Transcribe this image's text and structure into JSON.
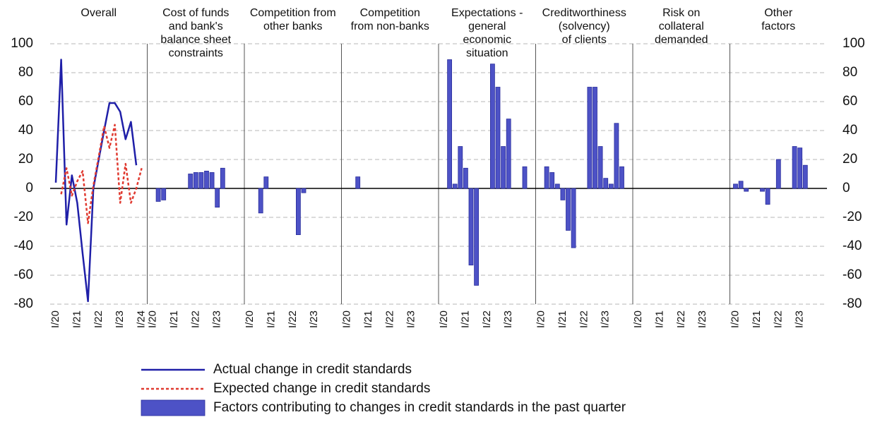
{
  "chart_data": {
    "type": "bar",
    "ylim": [
      -80,
      100
    ],
    "yticks": [
      -80,
      -60,
      -40,
      -20,
      0,
      20,
      40,
      60,
      80,
      100
    ],
    "grid": true,
    "bar_name": "Factors contributing to changes in credit standards in the past quarter",
    "color": "#4d52c6",
    "categories": [
      "I/20",
      null,
      null,
      null,
      "I/21",
      null,
      null,
      null,
      "I/22",
      null,
      null,
      null,
      "I/23",
      null,
      null,
      null
    ],
    "panels": [
      {
        "type": "line",
        "title": [
          "Overall"
        ],
        "categories": [
          "I/20",
          null,
          null,
          null,
          "I/21",
          null,
          null,
          null,
          "I/22",
          null,
          null,
          null,
          "I/23",
          null,
          null,
          null,
          "I/24"
        ],
        "series": [
          {
            "name": "Actual change in credit standards",
            "color": "#1f1fa8",
            "dash": false,
            "values": [
              4,
              89,
              -25,
              9,
              -10,
              -45,
              -78,
              0,
              20,
              40,
              59,
              59,
              53,
              34,
              46,
              16,
              null
            ]
          },
          {
            "name": "Expected change in credit standards",
            "color": "#e03a30",
            "dash": true,
            "values": [
              null,
              -4,
              14,
              -5,
              5,
              12,
              -24,
              2,
              22,
              43,
              28,
              44,
              -10,
              17,
              -10,
              0,
              14
            ]
          }
        ]
      },
      {
        "type": "bar",
        "title": [
          "Cost of funds",
          "and bank's",
          "balance sheet",
          "constraints"
        ],
        "values": [
          0,
          -9,
          -8,
          0,
          0,
          0,
          0,
          10,
          11,
          11,
          12,
          11,
          -13,
          14,
          0,
          0
        ]
      },
      {
        "type": "bar",
        "title": [
          "Competition from",
          "other banks"
        ],
        "values": [
          0,
          0,
          -17,
          8,
          0,
          0,
          0,
          0,
          0,
          -32,
          -3,
          0,
          0,
          0,
          0,
          0
        ]
      },
      {
        "type": "bar",
        "title": [
          "Competition",
          "from non-banks"
        ],
        "values": [
          0,
          0,
          8,
          0,
          0,
          0,
          0,
          0,
          0,
          0,
          0,
          0,
          0,
          0,
          0,
          0
        ]
      },
      {
        "type": "bar",
        "title": [
          "Expectations -",
          "general",
          "economic",
          "situation"
        ],
        "values": [
          0,
          89,
          3,
          29,
          14,
          -53,
          -67,
          0,
          0,
          86,
          70,
          29,
          48,
          0,
          0,
          15
        ]
      },
      {
        "type": "bar",
        "title": [
          "Creditworthiness",
          "(solvency)",
          "of clients"
        ],
        "values": [
          0,
          15,
          11,
          3,
          -8,
          -29,
          -41,
          0,
          0,
          70,
          70,
          29,
          7,
          3,
          45,
          15
        ]
      },
      {
        "type": "bar",
        "title": [
          "Risk on",
          "collateral",
          "demanded"
        ],
        "values": [
          0,
          0,
          0,
          0,
          0,
          0,
          0,
          0,
          0,
          0,
          0,
          0,
          0,
          0,
          0,
          0
        ]
      },
      {
        "type": "bar",
        "title": [
          "Other",
          "factors"
        ],
        "values": [
          3,
          5,
          -2,
          0,
          0,
          -2,
          -11,
          0,
          20,
          0,
          0,
          29,
          28,
          16,
          0,
          0
        ]
      }
    ]
  }
}
